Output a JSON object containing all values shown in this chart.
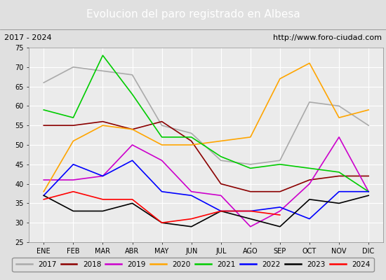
{
  "title": "Evolucion del paro registrado en Albesa",
  "subtitle_left": "2017 - 2024",
  "subtitle_right": "http://www.foro-ciudad.com",
  "months": [
    "ENE",
    "FEB",
    "MAR",
    "ABR",
    "MAY",
    "JUN",
    "JUL",
    "AGO",
    "SEP",
    "OCT",
    "NOV",
    "DIC"
  ],
  "series": {
    "2017": {
      "color": "#aaaaaa",
      "data": [
        66,
        70,
        69,
        68,
        55,
        53,
        46,
        45,
        46,
        61,
        60,
        55
      ]
    },
    "2018": {
      "color": "#8b0000",
      "data": [
        55,
        55,
        56,
        54,
        56,
        51,
        40,
        38,
        38,
        41,
        42,
        42
      ]
    },
    "2019": {
      "color": "#cc00cc",
      "data": [
        41,
        41,
        42,
        50,
        46,
        38,
        37,
        29,
        33,
        40,
        52,
        38
      ]
    },
    "2020": {
      "color": "#ffa500",
      "data": [
        38,
        51,
        55,
        54,
        50,
        50,
        51,
        52,
        67,
        71,
        57,
        59
      ]
    },
    "2021": {
      "color": "#00cc00",
      "data": [
        59,
        57,
        73,
        63,
        52,
        52,
        47,
        44,
        45,
        44,
        43,
        38
      ]
    },
    "2022": {
      "color": "#0000ff",
      "data": [
        37,
        45,
        42,
        46,
        38,
        37,
        33,
        33,
        34,
        31,
        38,
        38
      ]
    },
    "2023": {
      "color": "#000000",
      "data": [
        37,
        33,
        33,
        35,
        30,
        29,
        33,
        31,
        29,
        36,
        35,
        37
      ]
    },
    "2024": {
      "color": "#ff0000",
      "data": [
        36,
        38,
        36,
        36,
        30,
        31,
        33,
        33,
        32,
        null,
        null,
        null
      ]
    }
  },
  "xlim": [
    -0.5,
    11.5
  ],
  "ylim": [
    25,
    75
  ],
  "yticks": [
    25,
    30,
    35,
    40,
    45,
    50,
    55,
    60,
    65,
    70,
    75
  ],
  "title_bg": "#4d7ebf",
  "title_color": "#ffffff",
  "subtitle_bg": "#e0e0e0",
  "plot_bg": "#ebebeb",
  "grid_color": "#ffffff",
  "title_fontsize": 11,
  "subtitle_fontsize": 8,
  "tick_fontsize": 7,
  "legend_fontsize": 7.5
}
